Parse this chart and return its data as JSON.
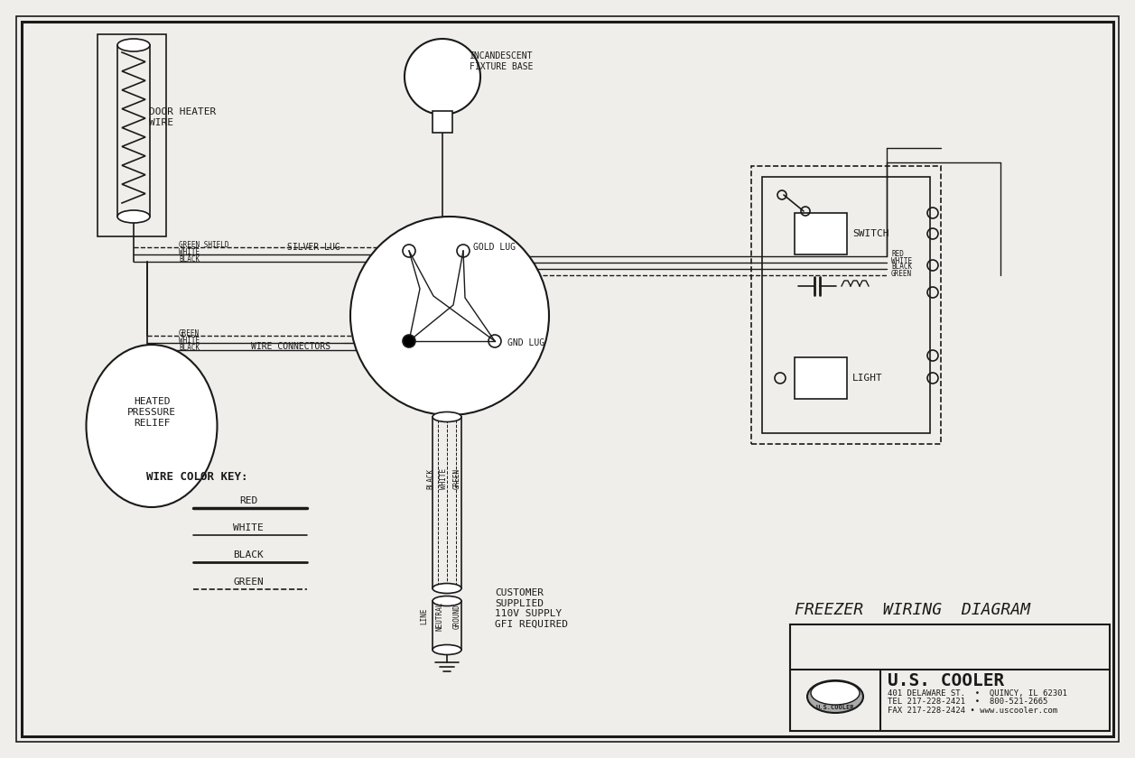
{
  "bg_color": "#f0eeea",
  "line_color": "#1a1a1a",
  "title": "FREEZER  WIRING  DIAGRAM",
  "company": "U.S. COOLER",
  "addr1": "401 DELAWARE ST.  •  QUINCY, IL 62301",
  "addr2": "TEL 217-228-2421  •  800-521-2665",
  "addr3": "FAX 217-228-2424 • www.uscooler.com",
  "label_door_heater": "DOOR HEATER\nWIRE",
  "label_incandescent": "INCANDESCENT\nFIXTURE BASE",
  "label_silver_lug": "SILVER LUG",
  "label_gold_lug": "GOLD LUG",
  "label_gnd_lug": "GND LUG",
  "label_wire_conn": "WIRE CONNECTORS",
  "label_heated": "HEATED\nPRESSURE\nRELIEF",
  "label_switch": "SWITCH",
  "label_light": "LIGHT",
  "label_customer": "CUSTOMER\nSUPPLIED\n110V SUPPLY\nGFI REQUIRED",
  "label_wire_key": "WIRE COLOR KEY:"
}
